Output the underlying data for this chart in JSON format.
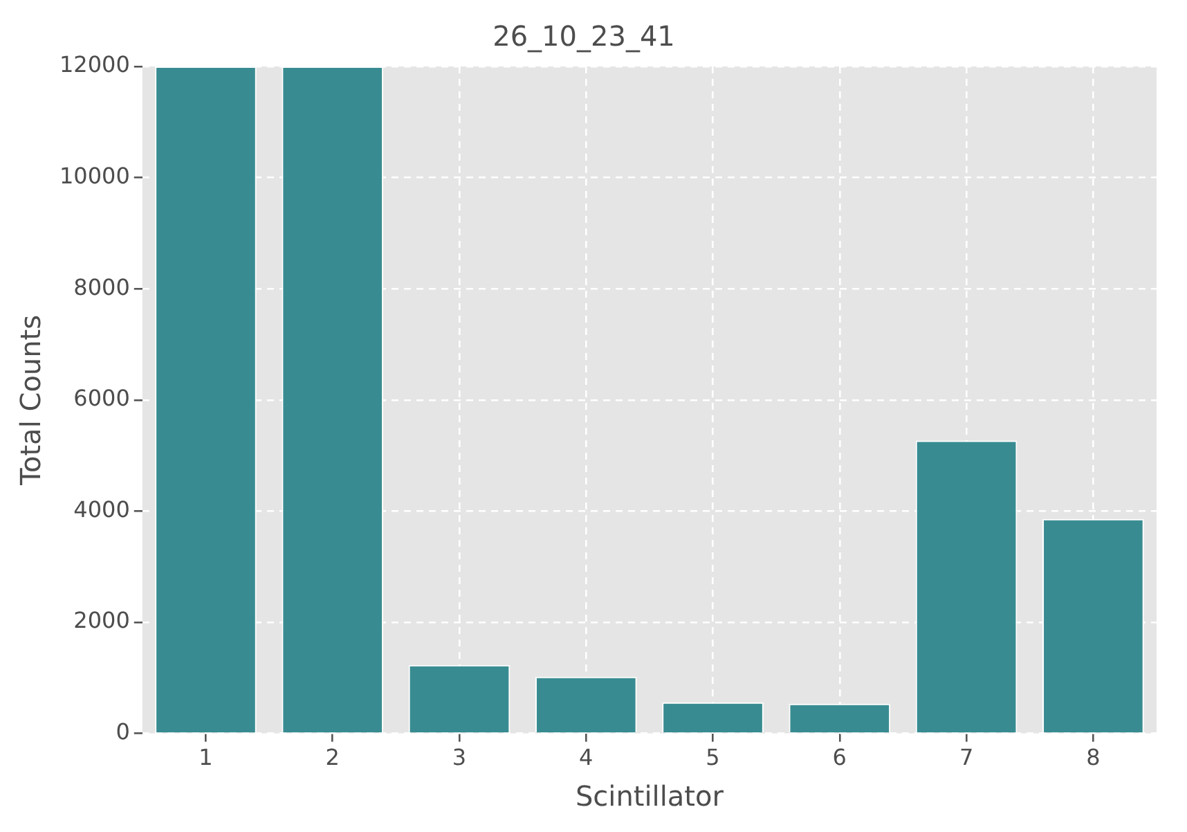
{
  "chart_data": {
    "type": "bar",
    "title": "26_10_23_41",
    "xlabel": "Scintillator",
    "ylabel": "Total Counts",
    "categories": [
      "1",
      "2",
      "3",
      "4",
      "5",
      "6",
      "7",
      "8"
    ],
    "values": [
      12000,
      12000,
      1230,
      1020,
      560,
      535,
      5270,
      3860
    ],
    "color": "#388c91",
    "ylim": [
      0,
      12000
    ],
    "yticks": [
      0,
      2000,
      4000,
      6000,
      8000,
      10000,
      12000
    ],
    "grid": true
  }
}
